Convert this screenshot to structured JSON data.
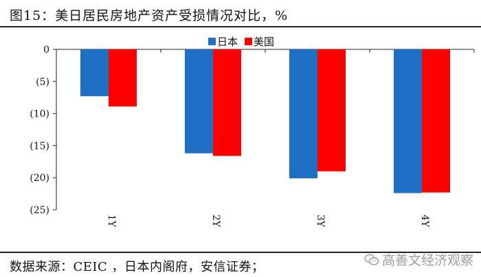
{
  "title": "图15：美日居民房地产资产受损情况对比，%",
  "source": "数据来源：CEIC ，日本内阁府，安信证券；",
  "watermark": "高善文经济观察",
  "colors": {
    "series_japan": "#1f6fc5",
    "series_us": "#ff0000",
    "axis": "#222222"
  },
  "chart_data": {
    "type": "bar",
    "categories": [
      "1Y",
      "2Y",
      "3Y",
      "4Y"
    ],
    "series": [
      {
        "name": "日本",
        "values": [
          -7.3,
          -16.2,
          -20.1,
          -22.4
        ]
      },
      {
        "name": "美国",
        "values": [
          -8.9,
          -16.6,
          -19.0,
          -22.3
        ]
      }
    ],
    "yticks": [
      0,
      -5,
      -10,
      -15,
      -20,
      -25
    ],
    "ytick_labels": [
      "0",
      "(5)",
      "(10)",
      "(15)",
      "(20)",
      "(25)"
    ],
    "ylim": [
      -25,
      0
    ],
    "grid": false,
    "legend_position": "top-right"
  }
}
